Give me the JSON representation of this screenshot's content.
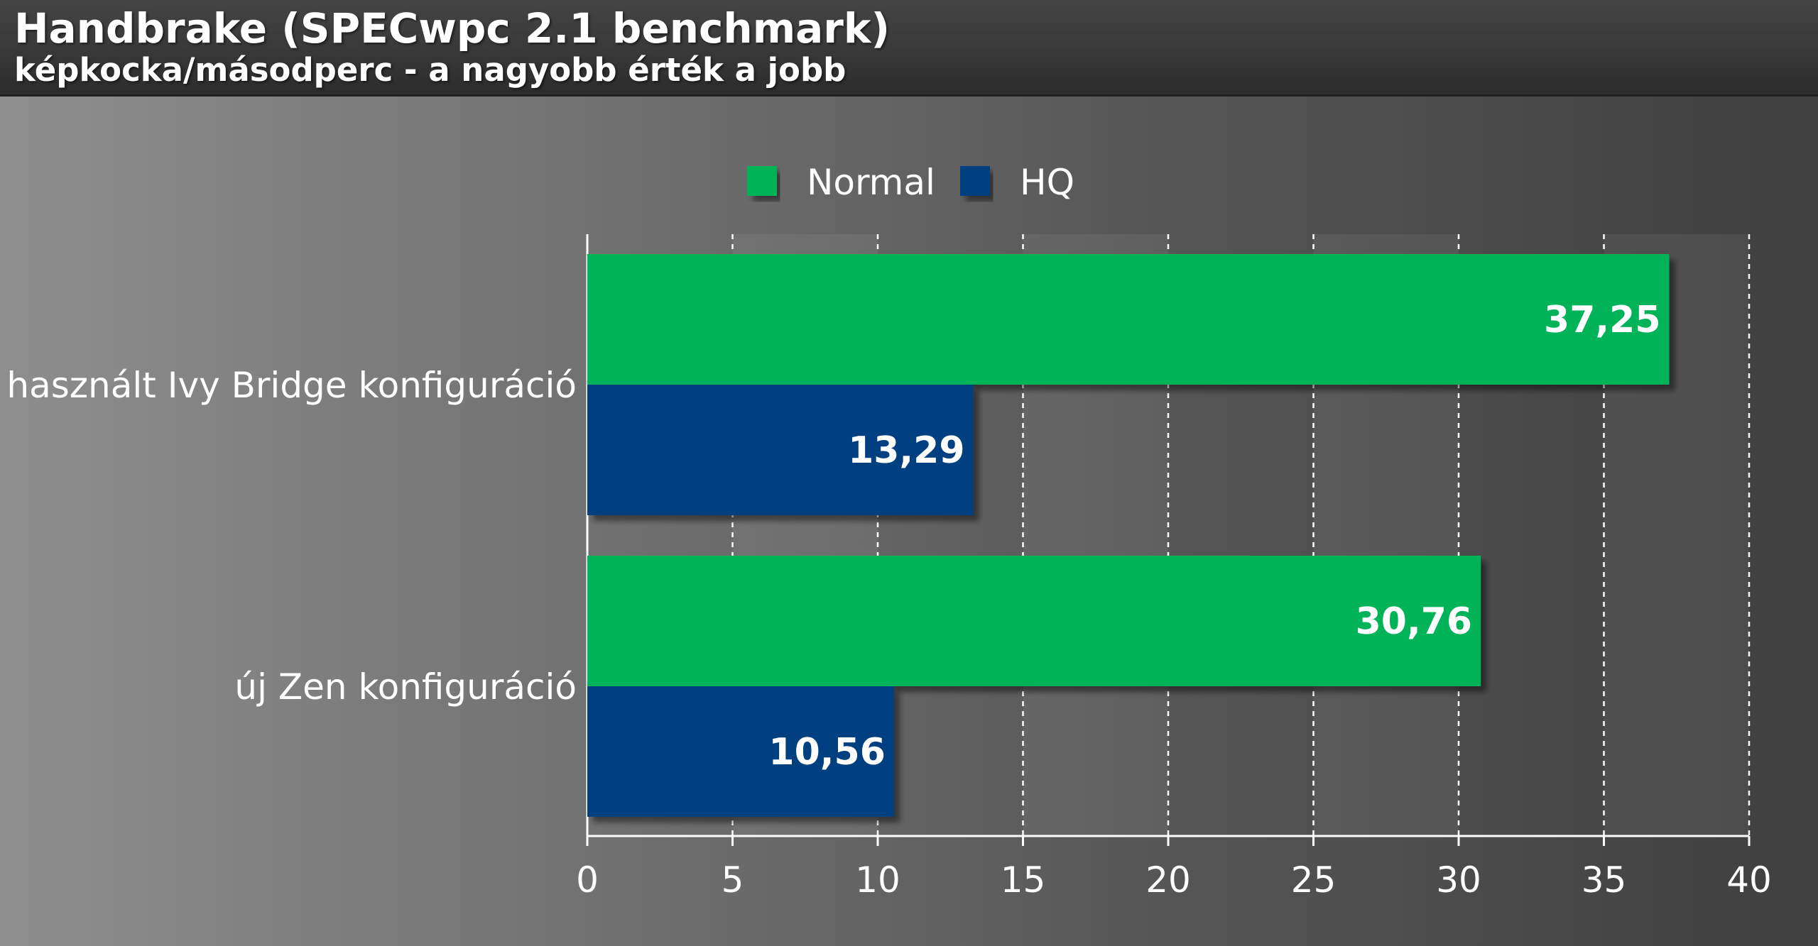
{
  "chart_data": {
    "type": "bar",
    "orientation": "horizontal",
    "title": "Handbrake (SPECwpc 2.1 benchmark)",
    "subtitle": "képkocka/másodperc - a nagyobb érték a jobb",
    "categories": [
      "használt Ivy Bridge konfiguráció",
      "új Zen konfiguráció"
    ],
    "series": [
      {
        "name": "Normal",
        "color": "#00b259",
        "values": [
          37.25,
          30.76
        ],
        "labels": [
          "37,25",
          "30,76"
        ]
      },
      {
        "name": "HQ",
        "color": "#003f80",
        "values": [
          13.29,
          10.56
        ],
        "labels": [
          "13,29",
          "10,56"
        ]
      }
    ],
    "xlim": [
      0,
      40
    ],
    "xticks": [
      0,
      5,
      10,
      15,
      20,
      25,
      30,
      35,
      40
    ],
    "grid": true,
    "legend": "top-center"
  }
}
